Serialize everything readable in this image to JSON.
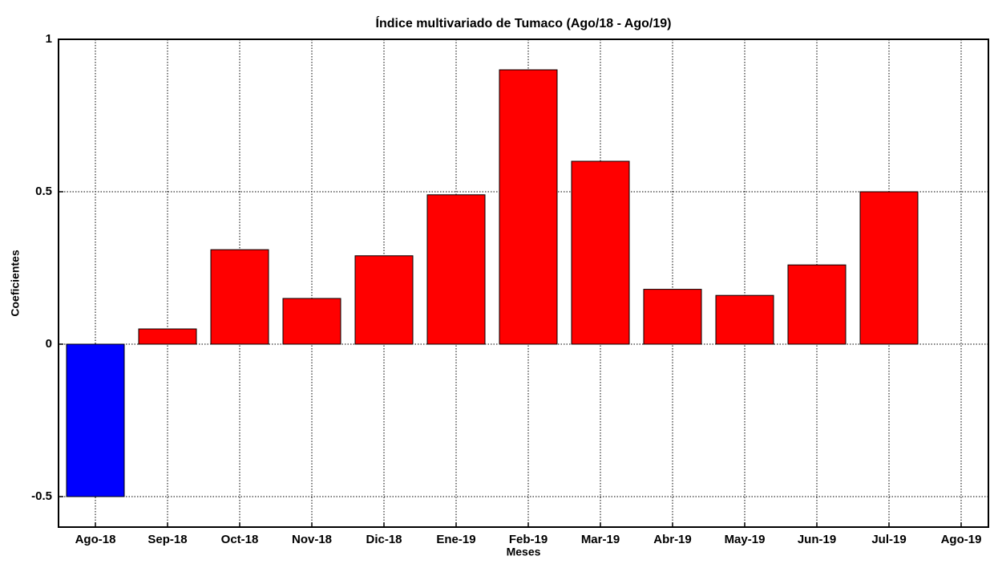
{
  "chart_data": {
    "type": "bar",
    "title": "Índice multivariado de Tumaco (Ago/18 - Ago/19)",
    "x_label": "Meses",
    "y_label": "Coeficientes",
    "categories": [
      "Ago-18",
      "Sep-18",
      "Oct-18",
      "Nov-18",
      "Dic-18",
      "Ene-19",
      "Feb-19",
      "Mar-19",
      "Abr-19",
      "May-19",
      "Jun-19",
      "Jul-19",
      "Ago-19"
    ],
    "values": [
      -0.5,
      0.05,
      0.31,
      0.15,
      0.29,
      0.49,
      0.9,
      0.6,
      0.18,
      0.16,
      0.26,
      0.5,
      null
    ],
    "colors": [
      "#0000ff",
      "#ff0000",
      "#ff0000",
      "#ff0000",
      "#ff0000",
      "#ff0000",
      "#ff0000",
      "#ff0000",
      "#ff0000",
      "#ff0000",
      "#ff0000",
      "#ff0000",
      "#ff0000"
    ],
    "ylim": [
      -0.6,
      1
    ],
    "yticks": [
      -0.5,
      0,
      0.5,
      1
    ],
    "grid": true
  }
}
